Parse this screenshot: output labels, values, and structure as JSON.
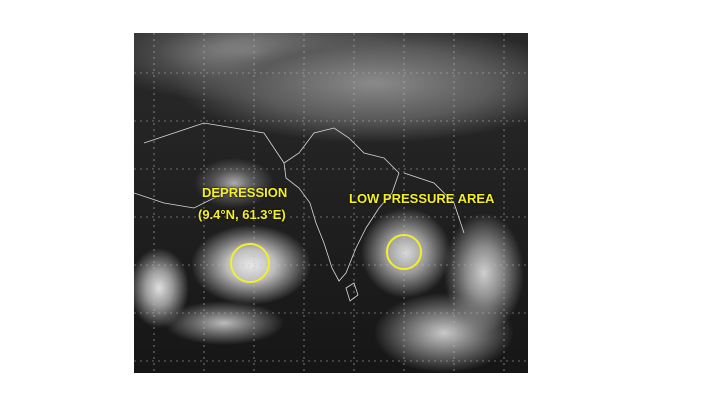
{
  "map": {
    "accent_color": "#f4ef2a",
    "annotations": {
      "depression_title": "DEPRESSION",
      "depression_coords": "(9.4°N, 61.3°E)",
      "low_pressure_title": "LOW PRESSURE AREA"
    },
    "circled_systems": [
      "depression",
      "low-pressure-area"
    ]
  }
}
